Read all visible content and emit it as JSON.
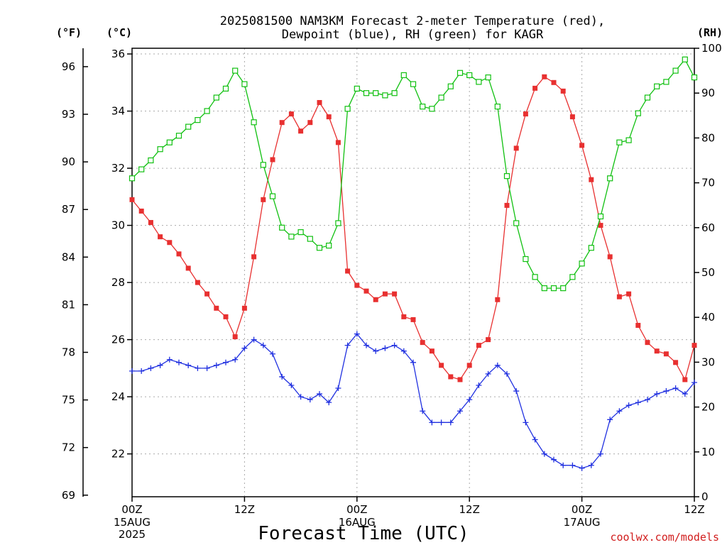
{
  "chart_data": {
    "type": "line",
    "title": "2025081500 NAM3KM Forecast 2-meter Temperature (red),",
    "title_line2": "Dewpoint (blue), RH (green) for KAGR",
    "xlabel": "Forecast Time (UTC)",
    "credit": "coolwx.com/models",
    "axes": {
      "left_f": {
        "unit": "(°F)",
        "ticks": [
          69,
          72,
          75,
          78,
          81,
          84,
          87,
          90,
          93,
          96
        ]
      },
      "left_c": {
        "unit": "(°C)",
        "range": [
          20.5,
          36.2
        ],
        "ticks": [
          22,
          24,
          26,
          28,
          30,
          32,
          34,
          36
        ]
      },
      "right_rh": {
        "unit": "(RH)",
        "range": [
          0,
          100
        ],
        "ticks": [
          0,
          10,
          20,
          30,
          40,
          50,
          60,
          70,
          80,
          90,
          100
        ]
      }
    },
    "x_range_hours": [
      0,
      60
    ],
    "x_ticks": [
      {
        "h": 0,
        "label": "00Z",
        "sub": [
          "15AUG",
          "2025"
        ]
      },
      {
        "h": 12,
        "label": "12Z",
        "sub": []
      },
      {
        "h": 24,
        "label": "00Z",
        "sub": [
          "16AUG"
        ]
      },
      {
        "h": 36,
        "label": "12Z",
        "sub": []
      },
      {
        "h": 48,
        "label": "00Z",
        "sub": [
          "17AUG"
        ]
      },
      {
        "h": 60,
        "label": "12Z",
        "sub": []
      }
    ],
    "grid": true,
    "series": [
      {
        "name": "Temperature",
        "axis": "c",
        "color": "#e83030",
        "marker": "filled-square",
        "x": [
          0,
          1,
          2,
          3,
          4,
          5,
          6,
          7,
          8,
          9,
          10,
          11,
          12,
          13,
          14,
          15,
          16,
          17,
          18,
          19,
          20,
          21,
          22,
          23,
          24,
          25,
          26,
          27,
          28,
          29,
          30,
          31,
          32,
          33,
          34,
          35,
          36,
          37,
          38,
          39,
          40,
          41,
          42,
          43,
          44,
          45,
          46,
          47,
          48,
          49,
          50,
          51,
          52,
          53,
          54,
          55,
          56,
          57,
          58,
          59,
          60
        ],
        "values": [
          30.9,
          30.5,
          30.1,
          29.6,
          29.4,
          29.0,
          28.5,
          28.0,
          27.6,
          27.1,
          26.8,
          26.1,
          27.1,
          28.9,
          30.9,
          32.3,
          33.6,
          33.9,
          33.3,
          33.6,
          34.3,
          33.8,
          32.9,
          28.4,
          27.9,
          27.7,
          27.4,
          27.6,
          27.6,
          26.8,
          26.7,
          25.9,
          25.6,
          25.1,
          24.7,
          24.6,
          25.1,
          25.8,
          26.0,
          27.4,
          30.7,
          32.7,
          33.9,
          34.8,
          35.2,
          35.0,
          34.7,
          33.8,
          32.8,
          31.6,
          30.0,
          28.9,
          27.5,
          27.6,
          26.5,
          25.9,
          25.6,
          25.5,
          25.2,
          24.6,
          25.8
        ]
      },
      {
        "name": "Dewpoint",
        "axis": "c",
        "color": "#2030e0",
        "marker": "plus",
        "x": [
          0,
          1,
          2,
          3,
          4,
          5,
          6,
          7,
          8,
          9,
          10,
          11,
          12,
          13,
          14,
          15,
          16,
          17,
          18,
          19,
          20,
          21,
          22,
          23,
          24,
          25,
          26,
          27,
          28,
          29,
          30,
          31,
          32,
          33,
          34,
          35,
          36,
          37,
          38,
          39,
          40,
          41,
          42,
          43,
          44,
          45,
          46,
          47,
          48,
          49,
          50,
          51,
          52,
          53,
          54,
          55,
          56,
          57,
          58,
          59,
          60
        ],
        "values": [
          24.9,
          24.9,
          25.0,
          25.1,
          25.3,
          25.2,
          25.1,
          25.0,
          25.0,
          25.1,
          25.2,
          25.3,
          25.7,
          26.0,
          25.8,
          25.5,
          24.7,
          24.4,
          24.0,
          23.9,
          24.1,
          23.8,
          24.3,
          25.8,
          26.2,
          25.8,
          25.6,
          25.7,
          25.8,
          25.6,
          25.2,
          23.5,
          23.1,
          23.1,
          23.1,
          23.5,
          23.9,
          24.4,
          24.8,
          25.1,
          24.8,
          24.2,
          23.1,
          22.5,
          22.0,
          21.8,
          21.6,
          21.6,
          21.5,
          21.6,
          22.0,
          23.2,
          23.5,
          23.7,
          23.8,
          23.9,
          24.1,
          24.2,
          24.3,
          24.1,
          24.5
        ]
      },
      {
        "name": "RH",
        "axis": "rh",
        "color": "#10c010",
        "marker": "open-square",
        "x": [
          0,
          1,
          2,
          3,
          4,
          5,
          6,
          7,
          8,
          9,
          10,
          11,
          12,
          13,
          14,
          15,
          16,
          17,
          18,
          19,
          20,
          21,
          22,
          23,
          24,
          25,
          26,
          27,
          28,
          29,
          30,
          31,
          32,
          33,
          34,
          35,
          36,
          37,
          38,
          39,
          40,
          41,
          42,
          43,
          44,
          45,
          46,
          47,
          48,
          49,
          50,
          51,
          52,
          53,
          54,
          55,
          56,
          57,
          58,
          59,
          60
        ],
        "values": [
          71,
          73,
          75,
          77.5,
          79,
          80.5,
          82.5,
          84,
          86,
          89,
          91,
          95,
          92,
          83.5,
          74,
          67,
          60,
          58,
          59,
          57.5,
          55.5,
          56,
          61,
          86.5,
          91,
          90,
          90,
          89.5,
          90,
          94,
          92,
          87,
          86.5,
          89,
          91.5,
          94.5,
          94,
          92.5,
          93.5,
          87,
          71.5,
          61,
          53,
          49,
          46.5,
          46.5,
          46.5,
          49,
          52,
          55.5,
          62.5,
          71,
          79,
          79.5,
          85.5,
          89,
          91.5,
          92.5,
          95,
          97.5,
          93.5
        ]
      }
    ]
  }
}
